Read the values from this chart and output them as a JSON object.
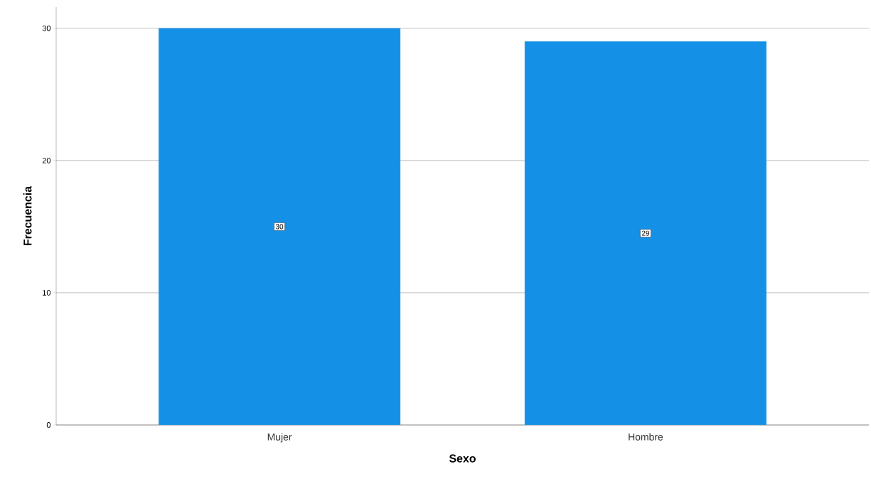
{
  "chart_data": {
    "type": "bar",
    "xlabel": "Sexo",
    "ylabel": "Frecuencia",
    "categories": [
      "Mujer",
      "Hombre"
    ],
    "values": [
      30,
      29
    ],
    "color": "#1490e6",
    "ylim": [
      0,
      31.6
    ],
    "yticks": [
      0,
      10,
      20,
      30
    ],
    "grid": "y",
    "data_labels": true
  }
}
